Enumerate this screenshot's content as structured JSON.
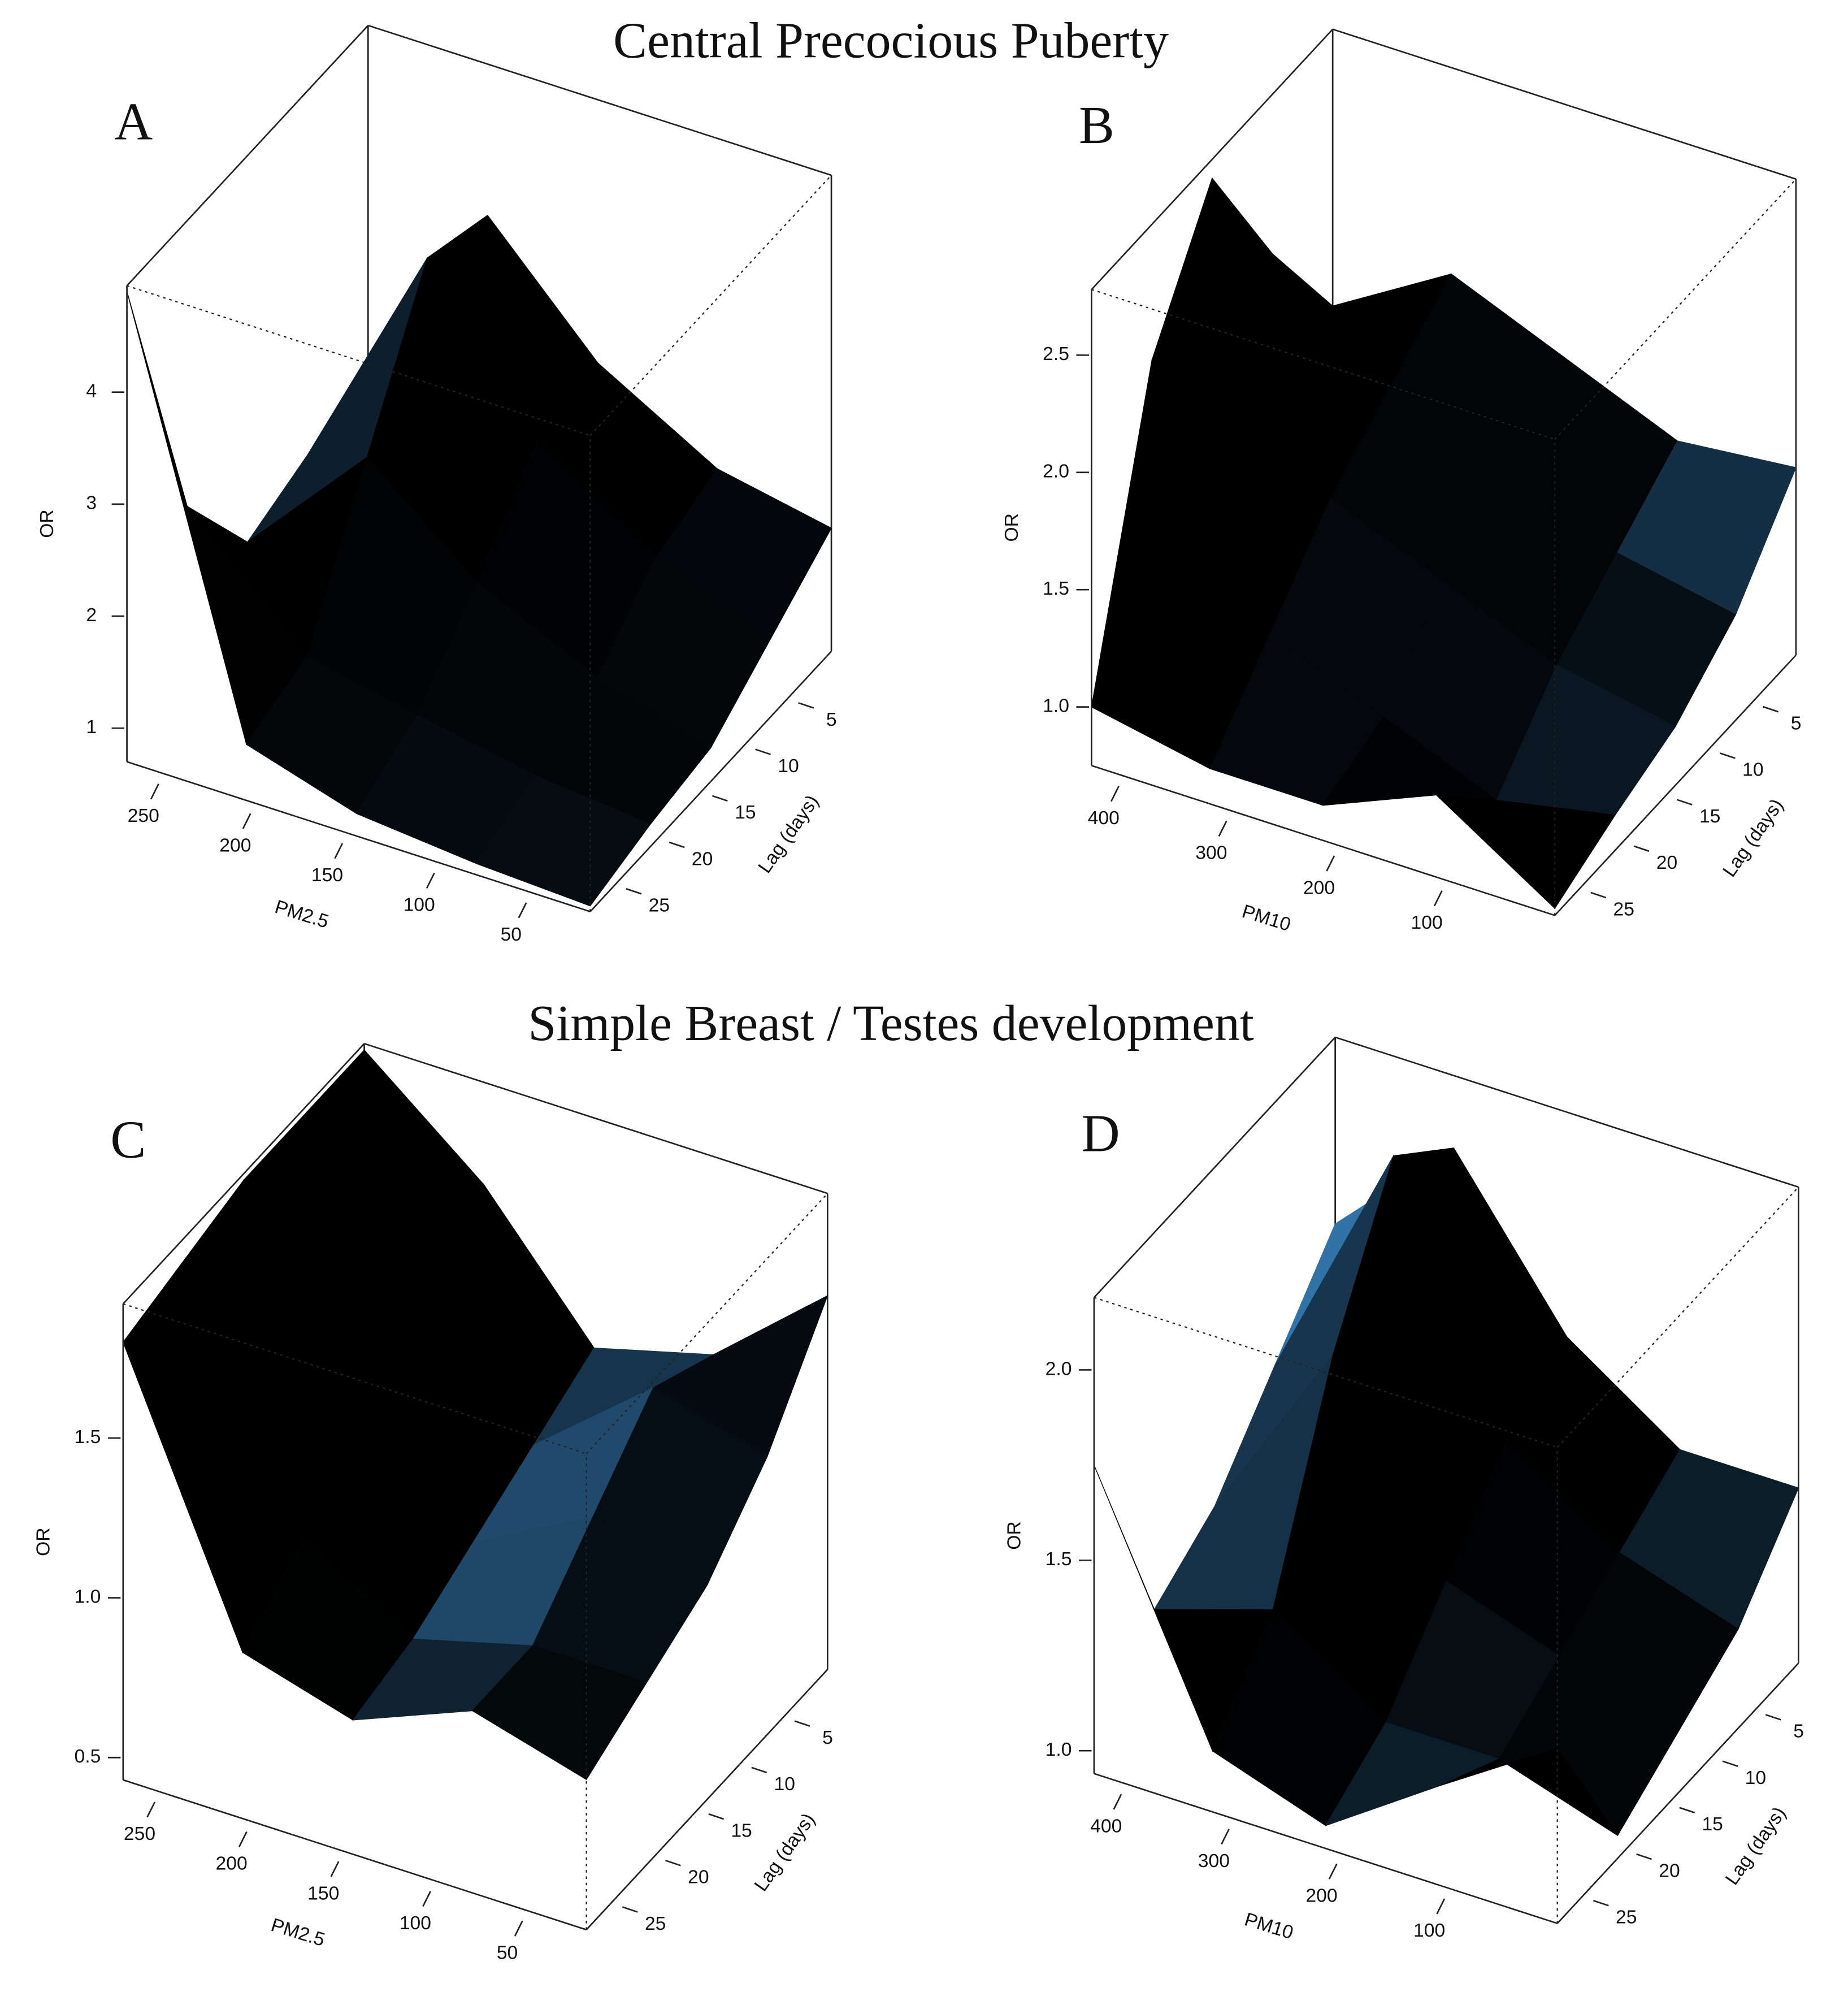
{
  "figure_titles": [
    "Central Precocious Puberty",
    "Simple Breast / Testes development"
  ],
  "chart_data": [
    {
      "type": "surface3d",
      "label": "A",
      "xlabel": "PM2.5",
      "ylabel": "Lag (days)",
      "zlabel": "OR",
      "color": "#3a86c4",
      "x": [
        270,
        205,
        145,
        80,
        18
      ],
      "y": [
        0,
        7,
        14,
        21,
        28
      ],
      "z": [
        [
          2.0,
          3.6,
          2.6,
          2.0,
          1.8
        ],
        [
          1.7,
          3.8,
          2.5,
          1.8,
          1.4
        ],
        [
          1.5,
          2.6,
          1.8,
          1.3,
          1.0
        ],
        [
          2.4,
          1.4,
          1.2,
          1.0,
          0.9
        ],
        [
          4.9,
          1.2,
          0.9,
          0.8,
          0.75
        ]
      ],
      "xlim": [
        270,
        18
      ],
      "ylim": [
        28,
        0
      ],
      "zlim": [
        0.7,
        4.95
      ],
      "xticks": [
        250,
        200,
        150,
        100,
        50
      ],
      "yticks": [
        25,
        20,
        15,
        10,
        5
      ],
      "zticks": [
        1,
        2,
        3,
        4
      ]
    },
    {
      "type": "surface3d",
      "label": "B",
      "xlabel": "PM10",
      "ylabel": "Lag (days)",
      "zlabel": "OR",
      "color": "#3a86c4",
      "x": [
        430,
        320,
        215,
        110,
        0
      ],
      "y": [
        0,
        7,
        14,
        21,
        28
      ],
      "z": [
        [
          1.6,
          1.9,
          1.7,
          1.5,
          1.55
        ],
        [
          2.1,
          1.7,
          1.5,
          1.3,
          1.2
        ],
        [
          2.7,
          1.5,
          1.3,
          1.1,
          1.0
        ],
        [
          2.2,
          1.2,
          1.0,
          0.8,
          0.9
        ],
        [
          1.0,
          0.9,
          0.9,
          1.1,
          0.78
        ]
      ],
      "xlim": [
        430,
        0
      ],
      "ylim": [
        28,
        0
      ],
      "zlim": [
        0.75,
        2.78
      ],
      "xticks": [
        400,
        300,
        200,
        100
      ],
      "yticks": [
        25,
        20,
        15,
        10,
        5
      ],
      "zticks": [
        {
          "value": 1,
          "label": "1.0"
        },
        1.5,
        {
          "value": 2,
          "label": "2.0"
        },
        2.5
      ]
    },
    {
      "type": "surface3d",
      "label": "C",
      "xlabel": "PM2.5",
      "ylabel": "Lag (days)",
      "zlabel": "OR",
      "color": "#3a86c4",
      "x": [
        270,
        205,
        145,
        80,
        18
      ],
      "y": [
        0,
        7,
        14,
        21,
        28
      ],
      "z": [
        [
          1.9,
          1.6,
          1.2,
          1.3,
          1.6
        ],
        [
          1.9,
          1.5,
          1.1,
          1.4,
          1.3
        ],
        [
          1.9,
          1.3,
          1.0,
          1.2,
          1.1
        ],
        [
          1.85,
          1.1,
          0.9,
          1.0,
          1.0
        ],
        [
          1.8,
          0.95,
          0.85,
          1.0,
          0.9
        ]
      ],
      "xlim": [
        270,
        18
      ],
      "ylim": [
        28,
        0
      ],
      "zlim": [
        0.43,
        1.92
      ],
      "xticks": [
        250,
        200,
        150,
        100,
        50
      ],
      "yticks": [
        25,
        20,
        15,
        10,
        5
      ],
      "zticks": [
        0.5,
        {
          "value": 1,
          "label": "1.0"
        },
        1.5
      ]
    },
    {
      "type": "surface3d",
      "label": "D",
      "xlabel": "PM10",
      "ylabel": "Lag (days)",
      "zlabel": "OR",
      "color": "#3a86c4",
      "x": [
        430,
        320,
        215,
        110,
        0
      ],
      "y": [
        0,
        7,
        14,
        21,
        28
      ],
      "z": [
        [
          1.7,
          2.0,
          1.6,
          1.4,
          1.4
        ],
        [
          1.5,
          2.15,
          1.5,
          1.3,
          1.2
        ],
        [
          1.3,
          1.8,
          1.3,
          1.2,
          1.1
        ],
        [
          1.2,
          1.3,
          1.1,
          1.1,
          1.0
        ],
        [
          1.75,
          1.1,
          1.0,
          1.2,
          1.4
        ]
      ],
      "xlim": [
        430,
        0
      ],
      "ylim": [
        28,
        0
      ],
      "zlim": [
        0.94,
        2.19
      ],
      "xticks": [
        400,
        300,
        200,
        100
      ],
      "yticks": [
        25,
        20,
        15,
        10,
        5
      ],
      "zticks": [
        {
          "value": 1,
          "label": "1.0"
        },
        1.5,
        {
          "value": 2,
          "label": "2.0"
        }
      ]
    }
  ]
}
